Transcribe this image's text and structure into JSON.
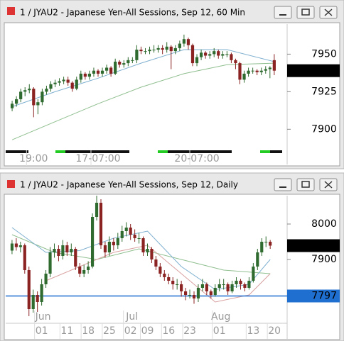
{
  "chart_data": [
    {
      "type": "candlestick",
      "title": "1 / JYAU2 - Japanese Yen-All Sessions, Sep 12, 60 Min",
      "up_color": "#2f6b2f",
      "down_color": "#8b2323",
      "xlim": [
        -1.5,
        64
      ],
      "ylim": [
        7886,
        7970
      ],
      "yticks": [
        7900,
        7925,
        7950
      ],
      "xticks": [
        {
          "value": 5,
          "label": "19:00"
        },
        {
          "value": 20,
          "label": "17-07:00"
        },
        {
          "value": 43,
          "label": "20-07:00"
        }
      ],
      "last_price": 7939,
      "candles": [
        [
          7914,
          7919,
          7912,
          7917
        ],
        [
          7917,
          7922,
          7915,
          7920
        ],
        [
          7920,
          7927,
          7918,
          7925
        ],
        [
          7925,
          7928,
          7922,
          7926
        ],
        [
          7926,
          7930,
          7924,
          7927
        ],
        [
          7927,
          7928,
          7908,
          7916
        ],
        [
          7916,
          7920,
          7910,
          7918
        ],
        [
          7918,
          7927,
          7916,
          7925
        ],
        [
          7925,
          7929,
          7923,
          7927
        ],
        [
          7927,
          7932,
          7925,
          7930
        ],
        [
          7930,
          7933,
          7928,
          7931
        ],
        [
          7931,
          7934,
          7929,
          7932
        ],
        [
          7932,
          7935,
          7930,
          7933
        ],
        [
          7933,
          7935,
          7929,
          7931
        ],
        [
          7931,
          7932,
          7925,
          7927
        ],
        [
          7927,
          7935,
          7926,
          7933
        ],
        [
          7933,
          7939,
          7931,
          7937
        ],
        [
          7937,
          7938,
          7933,
          7935
        ],
        [
          7935,
          7939,
          7933,
          7937
        ],
        [
          7937,
          7941,
          7935,
          7939
        ],
        [
          7939,
          7940,
          7935,
          7937
        ],
        [
          7937,
          7941,
          7935,
          7939
        ],
        [
          7939,
          7943,
          7937,
          7941
        ],
        [
          7941,
          7942,
          7935,
          7937
        ],
        [
          7937,
          7947,
          7936,
          7945
        ],
        [
          7945,
          7946,
          7941,
          7943
        ],
        [
          7943,
          7946,
          7941,
          7944
        ],
        [
          7944,
          7948,
          7942,
          7946
        ],
        [
          7946,
          7948,
          7944,
          7946
        ],
        [
          7946,
          7956,
          7944,
          7953
        ],
        [
          7953,
          7955,
          7950,
          7952
        ],
        [
          7952,
          7954,
          7950,
          7952
        ],
        [
          7952,
          7955,
          7950,
          7953
        ],
        [
          7953,
          7956,
          7951,
          7953
        ],
        [
          7953,
          7956,
          7951,
          7954
        ],
        [
          7954,
          7956,
          7950,
          7953
        ],
        [
          7953,
          7958,
          7951,
          7955
        ],
        [
          7955,
          7956,
          7940,
          7952
        ],
        [
          7952,
          7956,
          7950,
          7954
        ],
        [
          7954,
          7959,
          7952,
          7957
        ],
        [
          7957,
          7963,
          7955,
          7960
        ],
        [
          7960,
          7961,
          7953,
          7956
        ],
        [
          7956,
          7957,
          7942,
          7944
        ],
        [
          7944,
          7950,
          7942,
          7948
        ],
        [
          7948,
          7953,
          7946,
          7951
        ],
        [
          7951,
          7952,
          7947,
          7949
        ],
        [
          7949,
          7952,
          7947,
          7950
        ],
        [
          7950,
          7954,
          7948,
          7952
        ],
        [
          7952,
          7953,
          7947,
          7949
        ],
        [
          7949,
          7952,
          7947,
          7950
        ],
        [
          7950,
          7952,
          7948,
          7950
        ],
        [
          7950,
          7951,
          7944,
          7946
        ],
        [
          7946,
          7947,
          7940,
          7944
        ],
        [
          7944,
          7945,
          7930,
          7933
        ],
        [
          7933,
          7939,
          7931,
          7937
        ],
        [
          7937,
          7941,
          7935,
          7939
        ],
        [
          7939,
          7941,
          7937,
          7939
        ],
        [
          7939,
          7940,
          7936,
          7938
        ],
        [
          7938,
          7941,
          7936,
          7939
        ],
        [
          7939,
          7942,
          7937,
          7940
        ],
        [
          7940,
          7942,
          7934,
          7941
        ],
        [
          7946,
          7950,
          7936,
          7939
        ]
      ],
      "lines": [
        {
          "color": "#8fbf8f",
          "x": [
            0,
            10,
            20,
            30,
            40,
            50,
            61
          ],
          "values": [
            7893,
            7905,
            7917,
            7928,
            7937,
            7943,
            7944
          ]
        },
        {
          "color": "#7fb0d0",
          "x": [
            0,
            10,
            20,
            30,
            40,
            50,
            61
          ],
          "values": [
            7915,
            7925,
            7934,
            7944,
            7953,
            7953,
            7945
          ]
        }
      ]
    },
    {
      "type": "candlestick",
      "title": "1 / JYAU2 - Japanese Yen-All Sessions, Sep 12, Daily",
      "up_color": "#2f6b2f",
      "down_color": "#8b2323",
      "xlim": [
        -1.5,
        65
      ],
      "ylim": [
        7720,
        8080
      ],
      "yticks": [
        7900,
        8000
      ],
      "xticks": [
        {
          "value": 7,
          "label": "01"
        },
        {
          "value": 13,
          "label": "11"
        },
        {
          "value": 18,
          "label": "18"
        },
        {
          "value": 23,
          "label": "25"
        },
        {
          "value": 28,
          "label": "02"
        },
        {
          "value": 32,
          "label": "09"
        },
        {
          "value": 37,
          "label": "16"
        },
        {
          "value": 42,
          "label": "23"
        },
        {
          "value": 49,
          "label": "01"
        },
        {
          "value": 57,
          "label": "13"
        },
        {
          "value": 62,
          "label": "20"
        }
      ],
      "month_ticks": [
        {
          "value": 7,
          "label": "Jun"
        },
        {
          "value": 28,
          "label": "Jul"
        },
        {
          "value": 49,
          "label": "Aug"
        }
      ],
      "last_price": 7939,
      "hline": 7797,
      "hline_color": "#1f6fd1",
      "candles": [
        [
          7925,
          7955,
          7915,
          7945
        ],
        [
          7945,
          7960,
          7925,
          7935
        ],
        [
          7935,
          7950,
          7920,
          7940
        ],
        [
          7940,
          7945,
          7860,
          7870
        ],
        [
          7870,
          7880,
          7740,
          7760
        ],
        [
          7760,
          7815,
          7750,
          7800
        ],
        [
          7800,
          7810,
          7752,
          7780
        ],
        [
          7780,
          7845,
          7770,
          7830
        ],
        [
          7830,
          7870,
          7820,
          7860
        ],
        [
          7860,
          7935,
          7850,
          7920
        ],
        [
          7920,
          7945,
          7905,
          7930
        ],
        [
          7930,
          7940,
          7895,
          7910
        ],
        [
          7910,
          7955,
          7900,
          7940
        ],
        [
          7940,
          7950,
          7910,
          7920
        ],
        [
          7920,
          7945,
          7910,
          7930
        ],
        [
          7930,
          7935,
          7870,
          7880
        ],
        [
          7880,
          7890,
          7850,
          7860
        ],
        [
          7860,
          7885,
          7850,
          7870
        ],
        [
          7870,
          7895,
          7860,
          7880
        ],
        [
          7880,
          8030,
          7875,
          8020
        ],
        [
          8020,
          8080,
          8010,
          8060
        ],
        [
          8060,
          8070,
          7930,
          7940
        ],
        [
          7940,
          7950,
          7905,
          7920
        ],
        [
          7920,
          7965,
          7910,
          7950
        ],
        [
          7950,
          7960,
          7925,
          7940
        ],
        [
          7940,
          7975,
          7930,
          7960
        ],
        [
          7960,
          7995,
          7950,
          7980
        ],
        [
          7980,
          8005,
          7965,
          7990
        ],
        [
          7990,
          8000,
          7955,
          7970
        ],
        [
          7970,
          7985,
          7950,
          7960
        ],
        [
          7960,
          7975,
          7945,
          7960
        ],
        [
          7960,
          7965,
          7910,
          7920
        ],
        [
          7920,
          7945,
          7910,
          7930
        ],
        [
          7930,
          7935,
          7890,
          7900
        ],
        [
          7900,
          7910,
          7870,
          7880
        ],
        [
          7880,
          7890,
          7850,
          7860
        ],
        [
          7860,
          7870,
          7840,
          7850
        ],
        [
          7850,
          7860,
          7830,
          7840
        ],
        [
          7840,
          7850,
          7815,
          7830
        ],
        [
          7830,
          7845,
          7815,
          7830
        ],
        [
          7830,
          7840,
          7795,
          7810
        ],
        [
          7810,
          7820,
          7785,
          7800
        ],
        [
          7800,
          7815,
          7790,
          7800
        ],
        [
          7800,
          7810,
          7775,
          7790
        ],
        [
          7790,
          7830,
          7780,
          7820
        ],
        [
          7820,
          7845,
          7810,
          7830
        ],
        [
          7830,
          7835,
          7800,
          7810
        ],
        [
          7810,
          7815,
          7790,
          7800
        ],
        [
          7800,
          7830,
          7795,
          7820
        ],
        [
          7820,
          7845,
          7810,
          7830
        ],
        [
          7830,
          7845,
          7815,
          7830
        ],
        [
          7830,
          7835,
          7800,
          7810
        ],
        [
          7810,
          7840,
          7805,
          7830
        ],
        [
          7830,
          7850,
          7820,
          7840
        ],
        [
          7840,
          7845,
          7815,
          7830
        ],
        [
          7830,
          7835,
          7810,
          7820
        ],
        [
          7820,
          7850,
          7815,
          7840
        ],
        [
          7840,
          7890,
          7835,
          7880
        ],
        [
          7880,
          7930,
          7870,
          7920
        ],
        [
          7920,
          7960,
          7910,
          7950
        ],
        [
          7950,
          7965,
          7935,
          7950
        ],
        [
          7950,
          7955,
          7930,
          7939
        ]
      ],
      "lines": [
        {
          "color": "#8fbf8f",
          "x": [
            0,
            10,
            20,
            30,
            40,
            50,
            61
          ],
          "values": [
            7970,
            7920,
            7900,
            7930,
            7900,
            7870,
            7860
          ]
        },
        {
          "color": "#7fb0d0",
          "x": [
            0,
            8,
            16,
            24,
            32,
            40,
            48,
            56,
            61
          ],
          "values": [
            7990,
            7920,
            7925,
            7960,
            7980,
            7880,
            7815,
            7830,
            7900
          ]
        },
        {
          "color": "#d9a0a0",
          "x": [
            8,
            16,
            24,
            32,
            40,
            48,
            56,
            61
          ],
          "values": [
            7840,
            7880,
            7920,
            7940,
            7860,
            7780,
            7800,
            7860
          ]
        }
      ]
    }
  ]
}
